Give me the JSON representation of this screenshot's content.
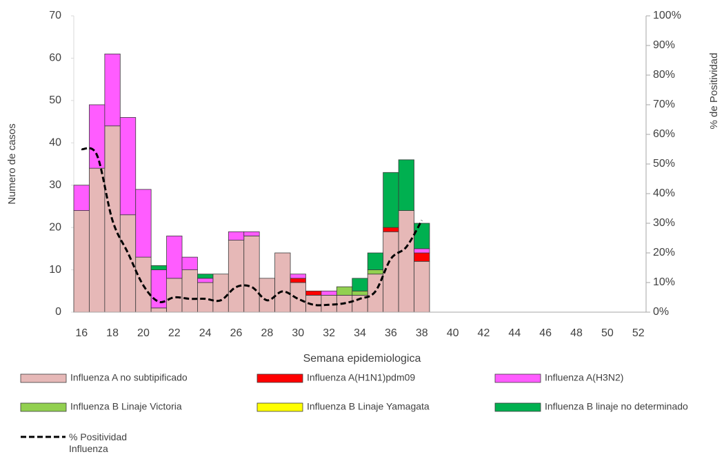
{
  "chart_data": {
    "type": "bar",
    "stacked": true,
    "xlabel": "Semana epidemiologica",
    "ylabel": "Numero de casos",
    "y2label": "% de Positividad",
    "categories": [
      "16",
      null,
      "18",
      null,
      "20",
      null,
      "22",
      null,
      "24",
      null,
      "26",
      null,
      "28",
      null,
      "30",
      null,
      "32",
      null,
      "34",
      null,
      "36",
      null,
      "38",
      null,
      "40",
      null,
      "42",
      null,
      "44",
      null,
      "46",
      null,
      "48",
      null,
      "50",
      null,
      "52"
    ],
    "ylim": [
      0,
      70
    ],
    "yticks": [
      0,
      10,
      20,
      30,
      40,
      50,
      60,
      70
    ],
    "y2lim": [
      0,
      100
    ],
    "y2ticks": [
      {
        "value": 0,
        "label": "0%"
      },
      {
        "value": 10,
        "label": "10%"
      },
      {
        "value": 20,
        "label": "20%"
      },
      {
        "value": 30,
        "label": "30%"
      },
      {
        "value": 40,
        "label": "40%"
      },
      {
        "value": 50,
        "label": "50%"
      },
      {
        "value": 60,
        "label": "60%"
      },
      {
        "value": 70,
        "label": "70%"
      },
      {
        "value": 80,
        "label": "80%"
      },
      {
        "value": 90,
        "label": "90%"
      },
      {
        "value": 100,
        "label": "100%"
      }
    ],
    "series": [
      {
        "name": "Influenza A no subtipificado",
        "color": "#e6b8b7",
        "values": [
          24,
          34,
          44,
          23,
          13,
          1,
          8,
          10,
          7,
          9,
          17,
          18,
          8,
          14,
          7,
          4,
          4,
          4,
          4,
          9,
          19,
          24,
          12,
          null,
          null,
          null,
          null,
          null,
          null,
          null,
          null,
          null,
          null,
          null,
          null,
          null,
          null
        ]
      },
      {
        "name": "Influenza A(H1N1)pdm09",
        "color": "#ff0000",
        "values": [
          0,
          0,
          0,
          0,
          0,
          0,
          0,
          0,
          0,
          0,
          0,
          0,
          0,
          0,
          1,
          1,
          0,
          0,
          0,
          0,
          1,
          0,
          2,
          null,
          null,
          null,
          null,
          null,
          null,
          null,
          null,
          null,
          null,
          null,
          null,
          null,
          null
        ]
      },
      {
        "name": "Influenza A(H3N2)",
        "color": "#ff5cff",
        "values": [
          6,
          15,
          17,
          23,
          16,
          9,
          10,
          3,
          1,
          0,
          2,
          1,
          0,
          0,
          1,
          0,
          1,
          0,
          0,
          0,
          0,
          0,
          1,
          null,
          null,
          null,
          null,
          null,
          null,
          null,
          null,
          null,
          null,
          null,
          null,
          null,
          null
        ]
      },
      {
        "name": "Influenza B Linaje Victoria",
        "color": "#92d050",
        "values": [
          0,
          0,
          0,
          0,
          0,
          0,
          0,
          0,
          0,
          0,
          0,
          0,
          0,
          0,
          0,
          0,
          0,
          2,
          1,
          1,
          0,
          0,
          0,
          null,
          null,
          null,
          null,
          null,
          null,
          null,
          null,
          null,
          null,
          null,
          null,
          null,
          null
        ]
      },
      {
        "name": "Influenza B Linaje Yamagata",
        "color": "#ffff00",
        "values": [
          0,
          0,
          0,
          0,
          0,
          0,
          0,
          0,
          0,
          0,
          0,
          0,
          0,
          0,
          0,
          0,
          0,
          0,
          0,
          0,
          0,
          0,
          0,
          null,
          null,
          null,
          null,
          null,
          null,
          null,
          null,
          null,
          null,
          null,
          null,
          null,
          null
        ]
      },
      {
        "name": "Influenza B linaje no determinado",
        "color": "#00b050",
        "values": [
          0,
          0,
          0,
          0,
          0,
          1,
          0,
          0,
          1,
          0,
          0,
          0,
          0,
          0,
          0,
          0,
          0,
          0,
          3,
          4,
          13,
          12,
          6,
          null,
          null,
          null,
          null,
          null,
          null,
          null,
          null,
          null,
          null,
          null,
          null,
          null,
          null
        ]
      },
      {
        "name": "% Positividad Influenza",
        "type": "line",
        "axis": "y2",
        "color": "#000000",
        "dashed": true,
        "values": [
          55,
          53,
          31,
          20,
          9,
          3.5,
          5,
          4.5,
          4.5,
          4,
          8.5,
          8.5,
          4,
          7,
          4.5,
          2.5,
          2.5,
          3,
          4.5,
          7,
          18,
          22,
          31,
          null,
          null,
          null,
          null,
          null,
          null,
          null,
          null,
          null,
          null,
          null,
          null,
          null,
          null
        ]
      }
    ]
  }
}
